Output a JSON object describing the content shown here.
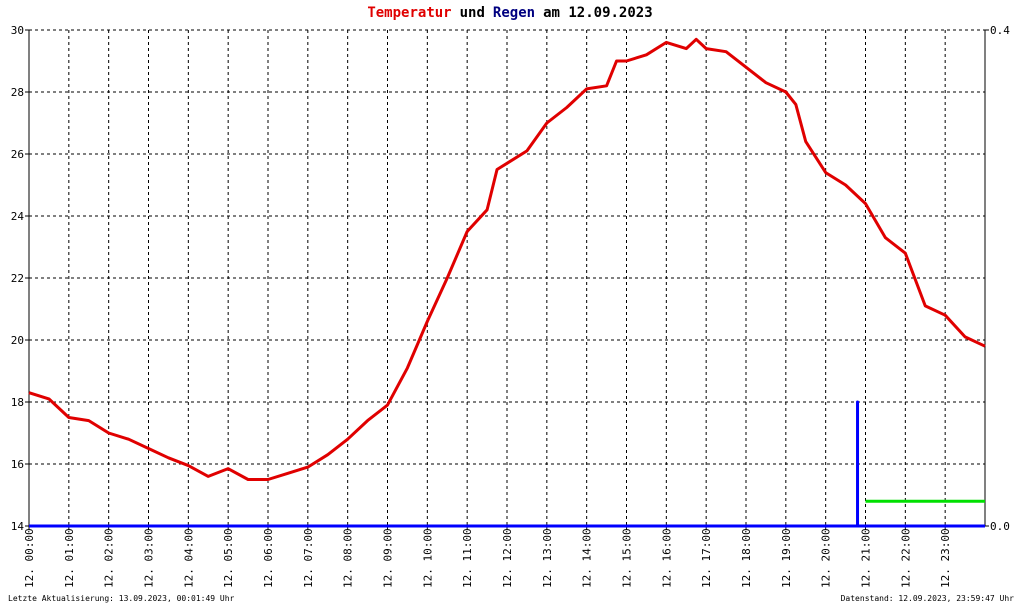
{
  "chart_data": {
    "type": "line",
    "title": [
      {
        "text": "Temperatur",
        "color": "#e00000"
      },
      {
        "text": "und",
        "color": "#000000"
      },
      {
        "text": "Regen",
        "color": "#000080"
      },
      {
        "text": "am 12.09.2023",
        "color": "#000000"
      }
    ],
    "xlim": [
      0,
      24
    ],
    "xticks": [
      {
        "value": 0,
        "label": "12. 00:00"
      },
      {
        "value": 1,
        "label": "12. 01:00"
      },
      {
        "value": 2,
        "label": "12. 02:00"
      },
      {
        "value": 3,
        "label": "12. 03:00"
      },
      {
        "value": 4,
        "label": "12. 04:00"
      },
      {
        "value": 5,
        "label": "12. 05:00"
      },
      {
        "value": 6,
        "label": "12. 06:00"
      },
      {
        "value": 7,
        "label": "12. 07:00"
      },
      {
        "value": 8,
        "label": "12. 08:00"
      },
      {
        "value": 9,
        "label": "12. 09:00"
      },
      {
        "value": 10,
        "label": "12. 10:00"
      },
      {
        "value": 11,
        "label": "12. 11:00"
      },
      {
        "value": 12,
        "label": "12. 12:00"
      },
      {
        "value": 13,
        "label": "12. 13:00"
      },
      {
        "value": 14,
        "label": "12. 14:00"
      },
      {
        "value": 15,
        "label": "12. 15:00"
      },
      {
        "value": 16,
        "label": "12. 16:00"
      },
      {
        "value": 17,
        "label": "12. 17:00"
      },
      {
        "value": 18,
        "label": "12. 18:00"
      },
      {
        "value": 19,
        "label": "12. 19:00"
      },
      {
        "value": 20,
        "label": "12. 20:00"
      },
      {
        "value": 21,
        "label": "12. 21:00"
      },
      {
        "value": 22,
        "label": "12. 22:00"
      },
      {
        "value": 23,
        "label": "12. 23:00"
      }
    ],
    "ylim": [
      14,
      30
    ],
    "yticks": [
      14,
      16,
      18,
      20,
      22,
      24,
      26,
      28,
      30
    ],
    "y2lim": [
      0,
      0.4
    ],
    "y2ticks": [
      {
        "value": 0,
        "label": "0.0"
      },
      {
        "value": 0.4,
        "label": "0.4"
      }
    ],
    "grid": true,
    "series": [
      {
        "color": "#e00000",
        "x": [
          0,
          0.5,
          1,
          1.5,
          2,
          2.5,
          3,
          3.5,
          4,
          4.5,
          5,
          5.5,
          6,
          6.5,
          7,
          7.5,
          8,
          8.5,
          9,
          9.5,
          10,
          10.5,
          11,
          11.5,
          11.75,
          12,
          12.5,
          13,
          13.5,
          14,
          14.5,
          14.75,
          15,
          15.5,
          16,
          16.5,
          16.75,
          17,
          17.5,
          18,
          18.5,
          19,
          19.25,
          19.5,
          20,
          20.5,
          21,
          21.5,
          22,
          22.5,
          23,
          23.5,
          24
        ],
        "values": [
          18.3,
          18.1,
          17.5,
          17.4,
          17.0,
          16.8,
          16.5,
          16.2,
          15.95,
          15.6,
          15.85,
          15.5,
          15.5,
          15.7,
          15.9,
          16.3,
          16.8,
          17.4,
          17.9,
          19.1,
          20.6,
          22.0,
          23.5,
          24.2,
          25.5,
          25.7,
          26.1,
          27.0,
          27.5,
          28.1,
          28.2,
          29.0,
          29.0,
          29.2,
          29.6,
          29.4,
          29.7,
          29.4,
          29.3,
          28.8,
          28.3,
          28.0,
          27.6,
          26.4,
          25.4,
          25.0,
          24.4,
          23.3,
          22.8,
          21.1,
          20.8,
          20.1,
          19.8
        ]
      },
      {
        "color": "#0000ff",
        "axis": "y2",
        "x": [
          0,
          20.8,
          20.8,
          20.8,
          24
        ],
        "values": [
          0,
          0,
          0.1,
          0,
          0
        ]
      },
      {
        "color": "#00e000",
        "axis": "y2",
        "x": [
          21,
          24
        ],
        "values": [
          0.02,
          0.02
        ]
      }
    ],
    "footer_left": "Letzte Aktualisierung: 13.09.2023, 00:01:49 Uhr",
    "footer_right": "Datenstand: 12.09.2023, 23:59:47 Uhr"
  }
}
